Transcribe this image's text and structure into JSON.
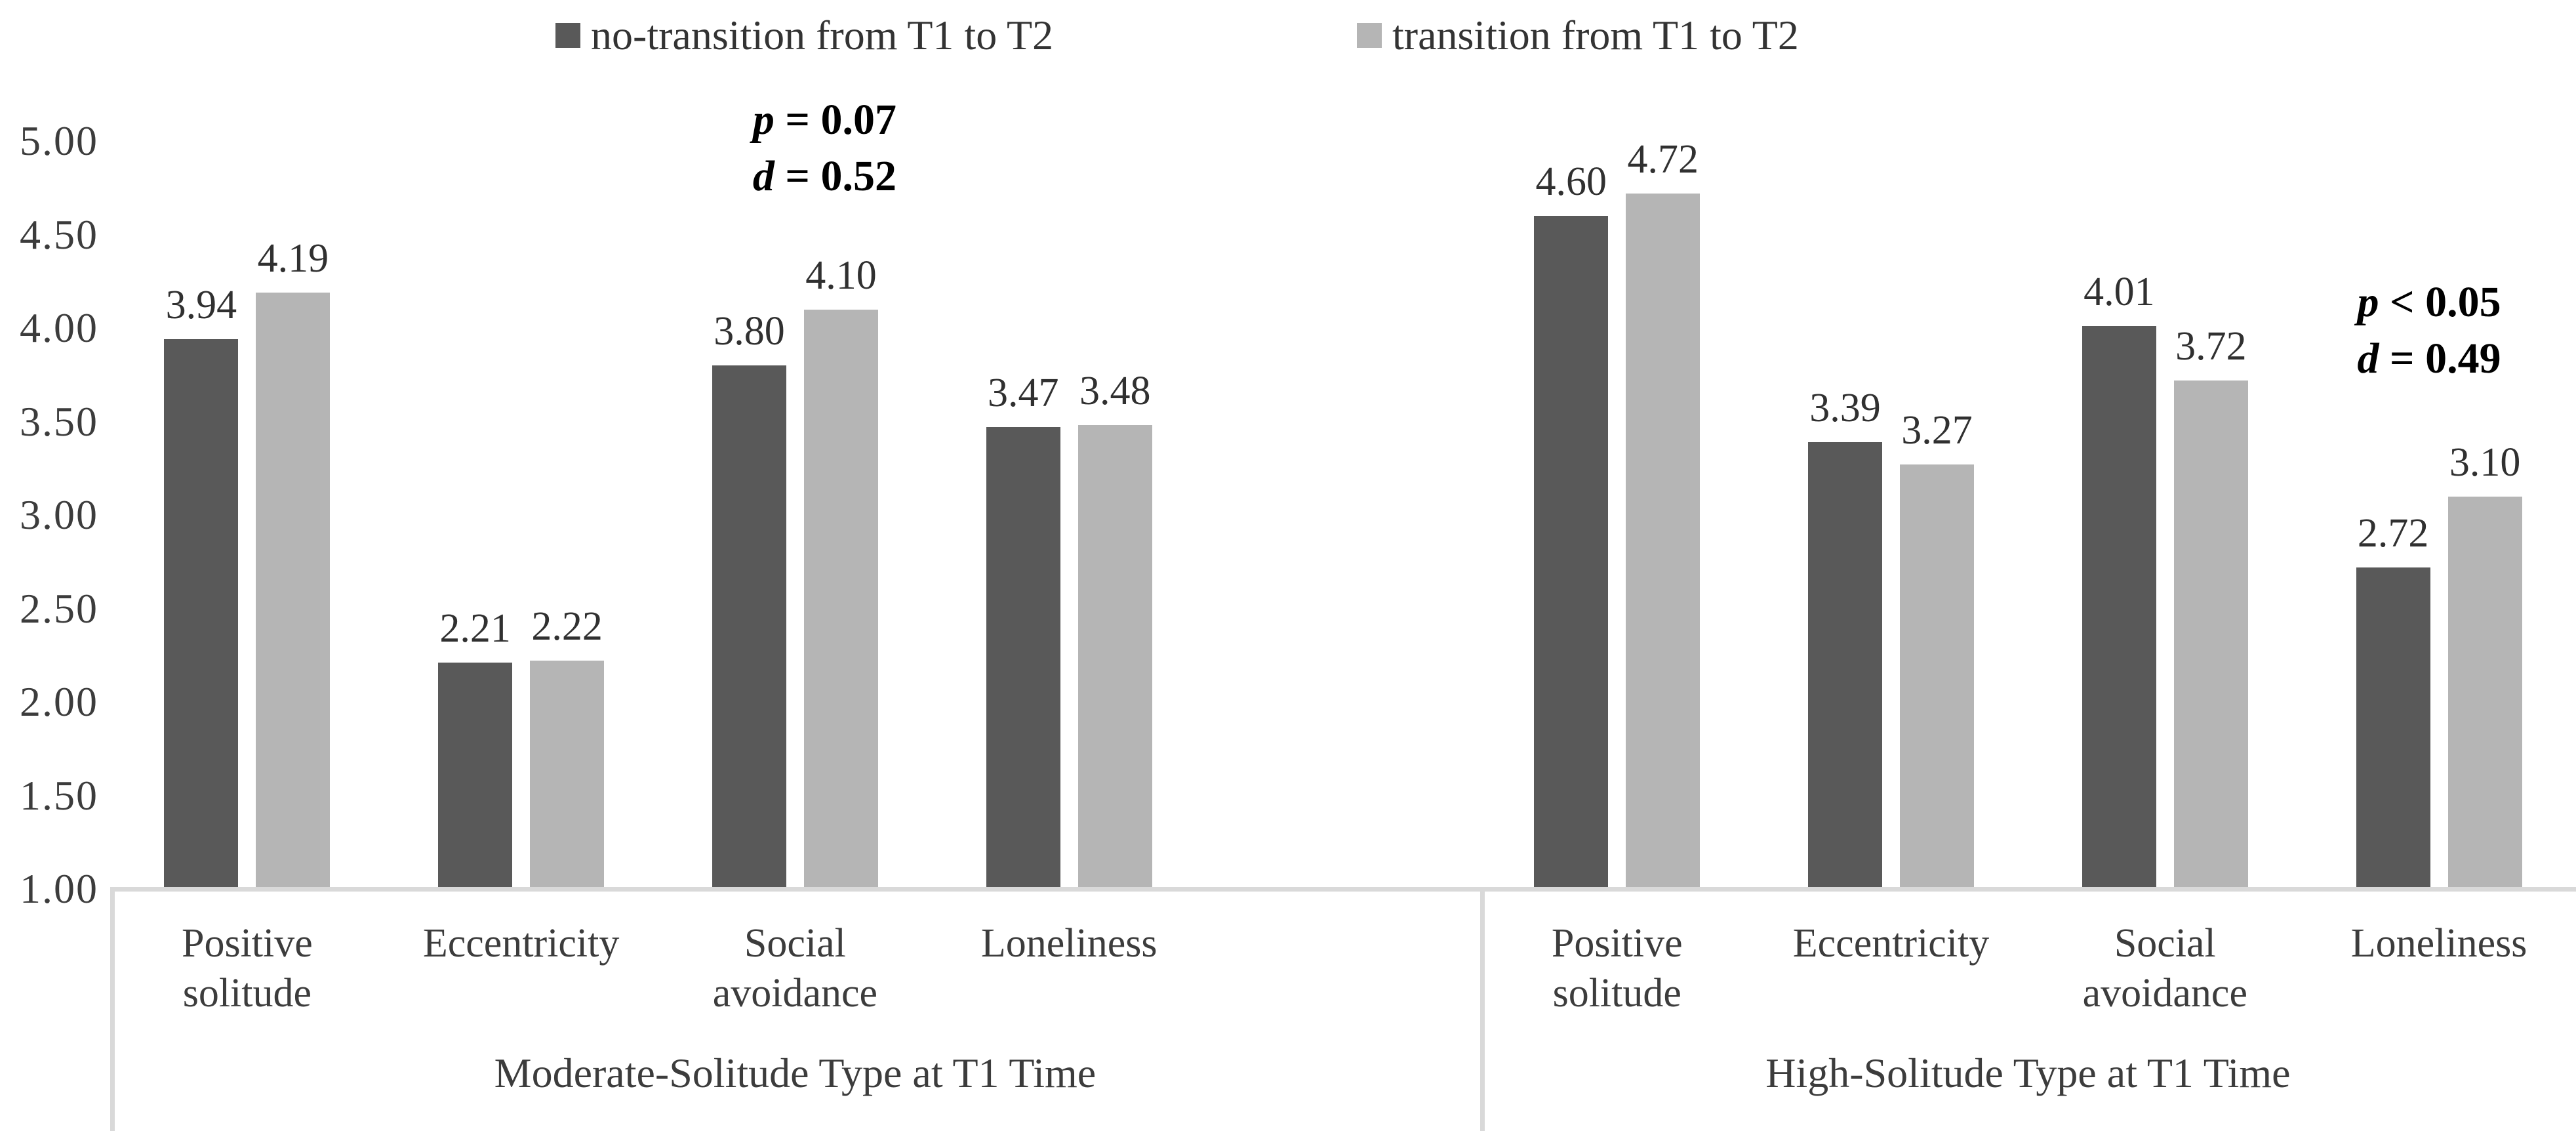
{
  "chart_data": {
    "type": "bar",
    "title": "",
    "legend_position": "top",
    "grid": false,
    "bar_colors": {
      "no_transition": "#595959",
      "transition": "#b5b5b5"
    },
    "line_color": "#d9d9d9",
    "legend": [
      {
        "label": "no-transition from T1 to T2",
        "color": "#595959"
      },
      {
        "label": "transition from T1 to T2",
        "color": "#b5b5b5"
      }
    ],
    "y_axis": {
      "min": 1.0,
      "max": 5.0,
      "step": 0.5,
      "tick_labels": [
        "5.00",
        "4.50",
        "4.00",
        "3.50",
        "3.00",
        "2.50",
        "2.00",
        "1.50",
        "1.00"
      ]
    },
    "groups": [
      {
        "label": "Moderate-Solitude Type at T1 Time",
        "categories": [
          "Positive solitude",
          "Eccentricity",
          "Social avoidance",
          "Loneliness"
        ],
        "series": [
          {
            "name": "no-transition from T1 to T2",
            "values": [
              3.94,
              2.21,
              3.8,
              3.47
            ],
            "value_labels": [
              "3.94",
              "2.21",
              "3.80",
              "3.47"
            ]
          },
          {
            "name": "transition from T1 to T2",
            "values": [
              4.19,
              2.22,
              4.1,
              3.48
            ],
            "value_labels": [
              "4.19",
              "2.22",
              "4.10",
              "3.48"
            ]
          }
        ],
        "annotation": {
          "category_index": 2,
          "lines": [
            {
              "symbol": "p",
              "operator": "=",
              "value": "0.07"
            },
            {
              "symbol": "d",
              "operator": "=",
              "value": "0.52"
            }
          ]
        }
      },
      {
        "label": "High-Solitude Type at T1 Time",
        "categories": [
          "Positive solitude",
          "Eccentricity",
          "Social avoidance",
          "Loneliness"
        ],
        "series": [
          {
            "name": "no-transition from T1 to T2",
            "values": [
              4.6,
              3.39,
              4.01,
              2.72
            ],
            "value_labels": [
              "4.60",
              "3.39",
              "4.01",
              "2.72"
            ]
          },
          {
            "name": "transition from T1 to T2",
            "values": [
              4.72,
              3.27,
              3.72,
              3.1
            ],
            "value_labels": [
              "4.72",
              "3.27",
              "3.72",
              "3.10"
            ]
          }
        ],
        "annotation": {
          "category_index": 3,
          "lines": [
            {
              "symbol": "p",
              "operator": "<",
              "value": "0.05"
            },
            {
              "symbol": "d",
              "operator": "=",
              "value": "0.49"
            }
          ]
        }
      }
    ]
  }
}
